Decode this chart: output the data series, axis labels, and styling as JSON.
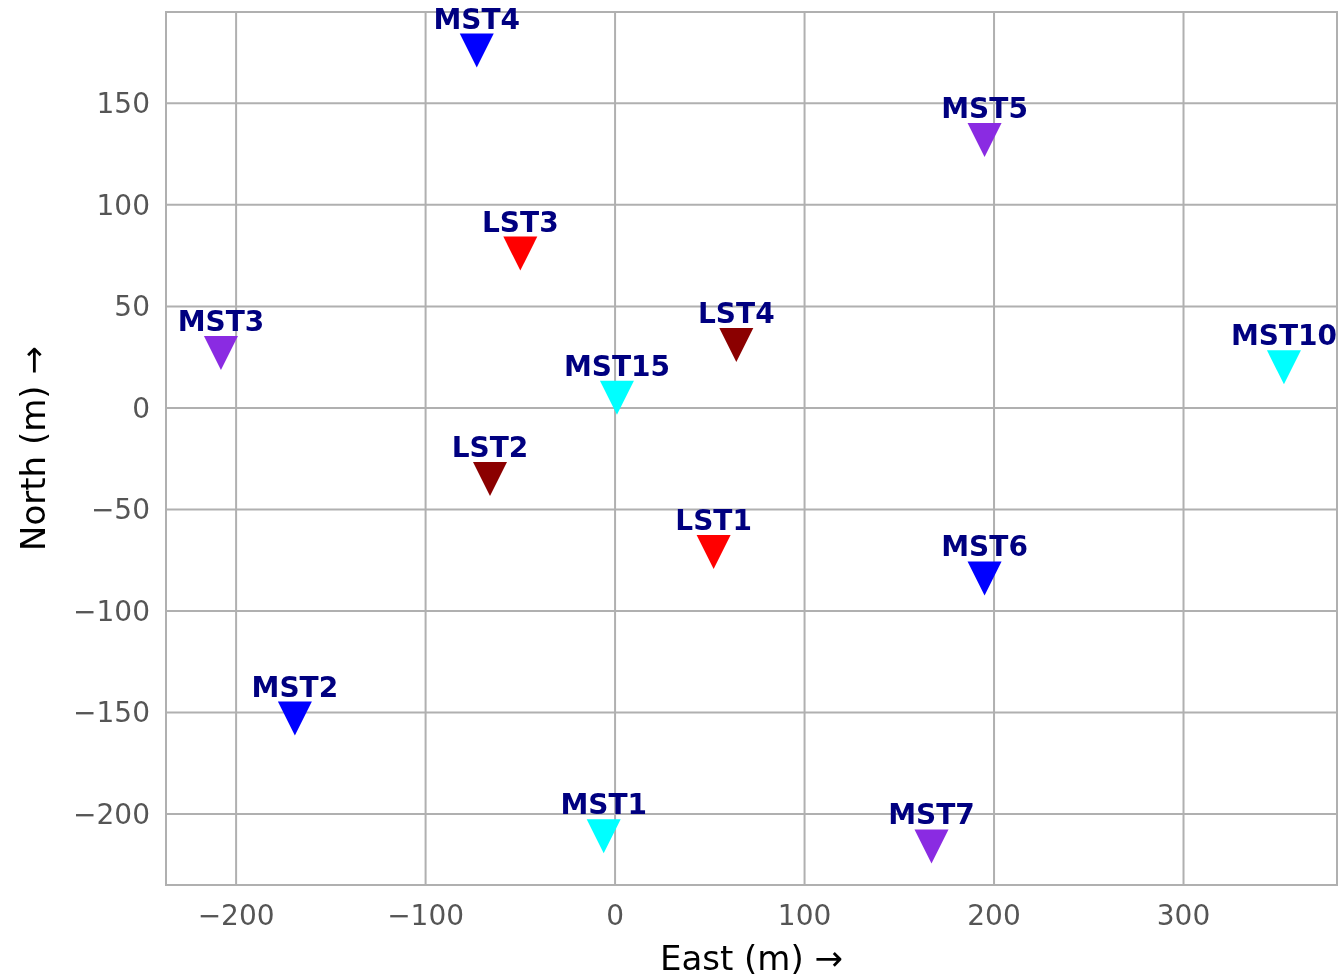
{
  "chart_data": {
    "type": "scatter",
    "xlabel": "East (m)  →",
    "ylabel": "North (m)  →",
    "x": [
      -73,
      195,
      -50,
      -208,
      64,
      353,
      1,
      -66,
      52,
      195,
      -169,
      -6,
      167
    ],
    "series": [
      {
        "values": [
          176,
          132,
          76,
          27,
          31,
          20,
          5,
          -35,
          -71,
          -84,
          -153,
          -211,
          -216
        ],
        "colors": [
          "#0000ff",
          "#8a2be2",
          "#ff0000",
          "#8a2be2",
          "#8b0000",
          "#00ffff",
          "#00ffff",
          "#8b0000",
          "#ff0000",
          "#0000ff",
          "#0000ff",
          "#00ffff",
          "#8a2be2"
        ]
      }
    ],
    "annotations": [
      {
        "text": "MST4",
        "x": -73,
        "y": 176
      },
      {
        "text": "MST5",
        "x": 195,
        "y": 132
      },
      {
        "text": "LST3",
        "x": -50,
        "y": 76
      },
      {
        "text": "MST3",
        "x": -208,
        "y": 27
      },
      {
        "text": "LST4",
        "x": 64,
        "y": 31
      },
      {
        "text": "MST10",
        "x": 353,
        "y": 20
      },
      {
        "text": "MST15",
        "x": 1,
        "y": 5
      },
      {
        "text": "LST2",
        "x": -66,
        "y": -35
      },
      {
        "text": "LST1",
        "x": 52,
        "y": -71
      },
      {
        "text": "MST6",
        "x": 195,
        "y": -84
      },
      {
        "text": "MST2",
        "x": -169,
        "y": -153
      },
      {
        "text": "MST1",
        "x": -6,
        "y": -211
      },
      {
        "text": "MST7",
        "x": 167,
        "y": -216
      }
    ],
    "xlim": [
      -237,
      381
    ],
    "ylim": [
      -235,
      195
    ],
    "xticks": [
      {
        "value": -200,
        "label": "−200"
      },
      {
        "value": -100,
        "label": "−100"
      },
      0,
      100,
      200,
      300
    ],
    "yticks": [
      {
        "value": -200,
        "label": "−200"
      },
      {
        "value": -150,
        "label": "−150"
      },
      {
        "value": -100,
        "label": "−100"
      },
      {
        "value": -50,
        "label": "−50"
      },
      0,
      50,
      100,
      150
    ],
    "grid": true,
    "marker": "triangle"
  }
}
